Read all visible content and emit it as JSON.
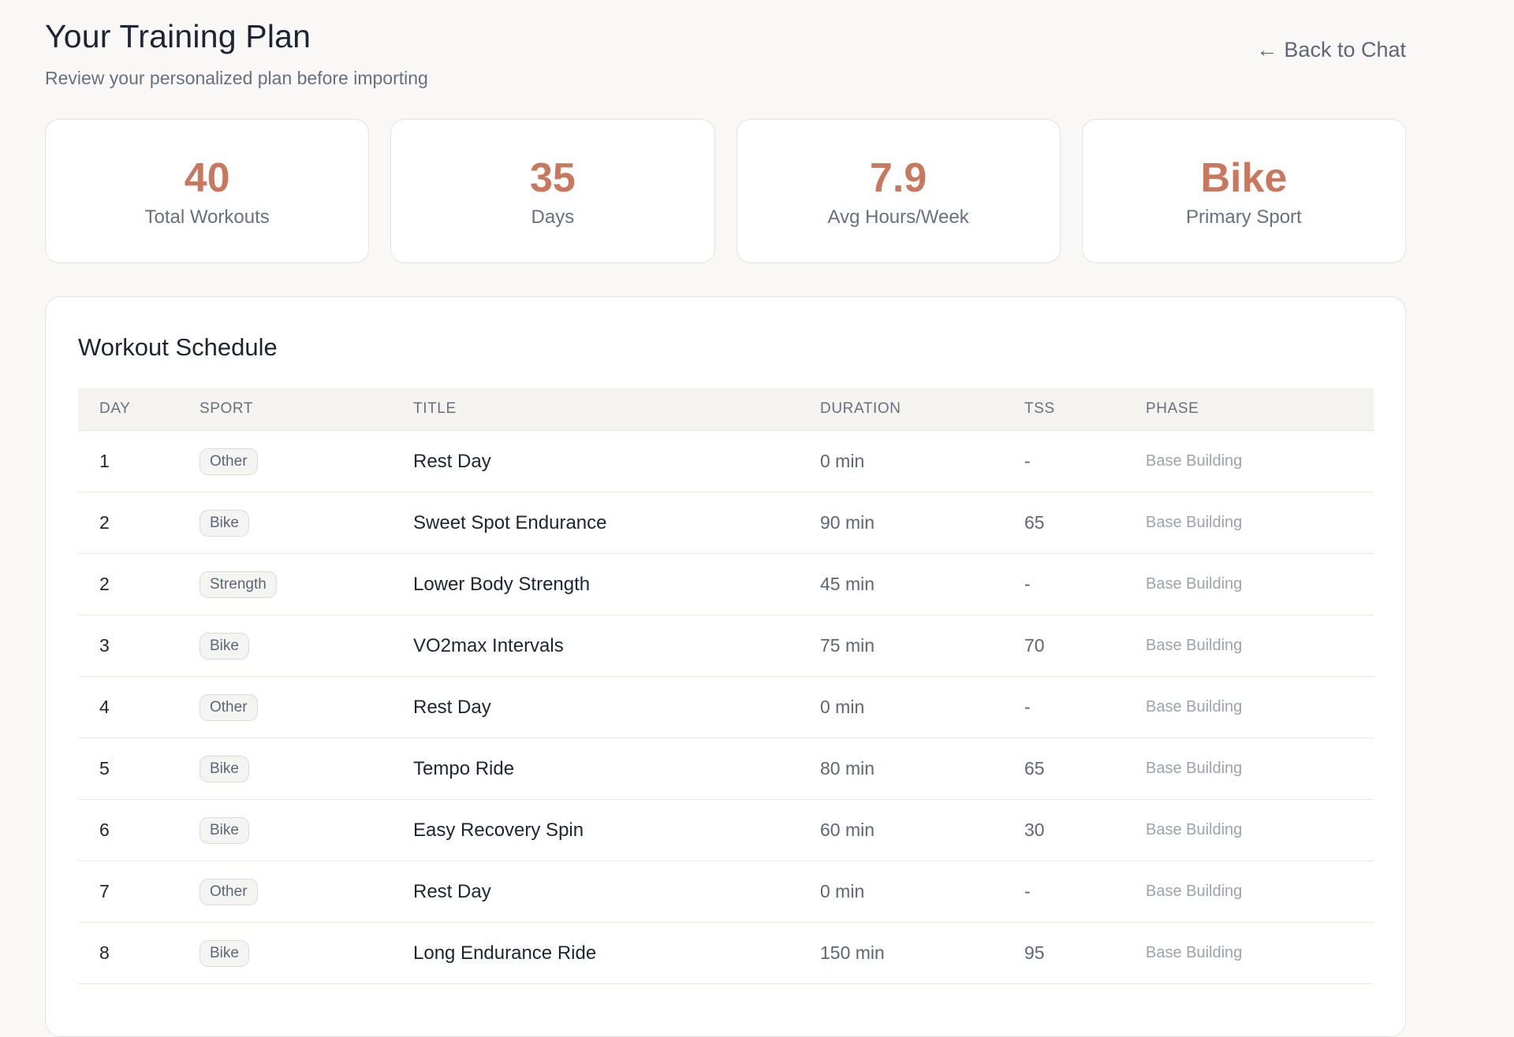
{
  "header": {
    "title": "Your Training Plan",
    "subtitle": "Review your personalized plan before importing",
    "back_arrow": "←",
    "back_label": "Back to Chat"
  },
  "stats": [
    {
      "value": "40",
      "label": "Total Workouts"
    },
    {
      "value": "35",
      "label": "Days"
    },
    {
      "value": "7.9",
      "label": "Avg Hours/Week"
    },
    {
      "value": "Bike",
      "label": "Primary Sport"
    }
  ],
  "schedule": {
    "title": "Workout Schedule",
    "columns": [
      "DAY",
      "SPORT",
      "TITLE",
      "DURATION",
      "TSS",
      "PHASE"
    ],
    "rows": [
      {
        "day": "1",
        "sport": "Other",
        "title": "Rest Day",
        "duration": "0 min",
        "tss": "-",
        "phase": "Base Building"
      },
      {
        "day": "2",
        "sport": "Bike",
        "title": "Sweet Spot Endurance",
        "duration": "90 min",
        "tss": "65",
        "phase": "Base Building"
      },
      {
        "day": "2",
        "sport": "Strength",
        "title": "Lower Body Strength",
        "duration": "45 min",
        "tss": "-",
        "phase": "Base Building"
      },
      {
        "day": "3",
        "sport": "Bike",
        "title": "VO2max Intervals",
        "duration": "75 min",
        "tss": "70",
        "phase": "Base Building"
      },
      {
        "day": "4",
        "sport": "Other",
        "title": "Rest Day",
        "duration": "0 min",
        "tss": "-",
        "phase": "Base Building"
      },
      {
        "day": "5",
        "sport": "Bike",
        "title": "Tempo Ride",
        "duration": "80 min",
        "tss": "65",
        "phase": "Base Building"
      },
      {
        "day": "6",
        "sport": "Bike",
        "title": "Easy Recovery Spin",
        "duration": "60 min",
        "tss": "30",
        "phase": "Base Building"
      },
      {
        "day": "7",
        "sport": "Other",
        "title": "Rest Day",
        "duration": "0 min",
        "tss": "-",
        "phase": "Base Building"
      },
      {
        "day": "8",
        "sport": "Bike",
        "title": "Long Endurance Ride",
        "duration": "150 min",
        "tss": "95",
        "phase": "Base Building"
      }
    ]
  },
  "colors": {
    "accent": "#c97860",
    "background": "#f9f8f6",
    "card": "#ffffff",
    "border": "#e6e3de",
    "text_primary": "#1d2433",
    "text_muted": "#687080",
    "phase_text": "#9da3ad"
  }
}
